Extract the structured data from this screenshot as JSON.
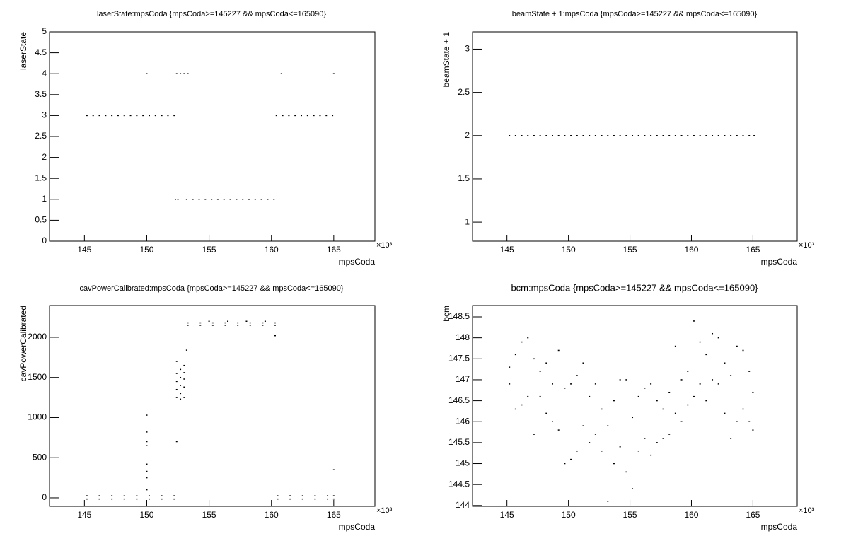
{
  "chart_data": [
    {
      "type": "scatter",
      "title": "laserState:mpsCoda {mpsCoda>=145227 && mpsCoda<=165090}",
      "xlabel": "mpsCoda",
      "ylabel": "laserState",
      "x_exponent": "×10³",
      "color": "#000000",
      "xlim": [
        142.2,
        168.3
      ],
      "xticks": [
        145,
        150,
        155,
        160,
        165
      ],
      "ylim": [
        0,
        5
      ],
      "yticks": [
        0,
        0.5,
        1,
        1.5,
        2,
        2.5,
        3,
        3.5,
        4,
        4.5,
        5
      ],
      "x": [
        145.2,
        145.7,
        146.2,
        146.7,
        147.2,
        147.7,
        148.2,
        148.7,
        149.2,
        149.7,
        150.2,
        150.7,
        151.2,
        151.7,
        152.2,
        160.4,
        160.9,
        161.4,
        161.9,
        162.4,
        162.9,
        163.4,
        163.9,
        164.4,
        164.9,
        150.0,
        152.4,
        152.7,
        153.0,
        153.3,
        160.8,
        165.0,
        152.3,
        152.5,
        153.2,
        153.7,
        154.2,
        154.7,
        155.2,
        155.7,
        156.2,
        156.7,
        157.2,
        157.7,
        158.2,
        158.7,
        159.2,
        159.7,
        160.2
      ],
      "values": [
        3,
        3,
        3,
        3,
        3,
        3,
        3,
        3,
        3,
        3,
        3,
        3,
        3,
        3,
        3,
        3,
        3,
        3,
        3,
        3,
        3,
        3,
        3,
        3,
        3,
        4,
        4,
        4,
        4,
        4,
        4,
        4,
        1,
        1,
        1,
        1,
        1,
        1,
        1,
        1,
        1,
        1,
        1,
        1,
        1,
        1,
        1,
        1,
        1
      ]
    },
    {
      "type": "scatter",
      "title": "beamState + 1:mpsCoda {mpsCoda>=145227 && mpsCoda<=165090}",
      "xlabel": "mpsCoda",
      "ylabel": "beamState + 1",
      "x_exponent": "×10³",
      "color": "#000000",
      "xlim": [
        142.2,
        168.6
      ],
      "xticks": [
        145,
        150,
        155,
        160,
        165
      ],
      "ylim": [
        0.78,
        3.2
      ],
      "yticks": [
        1,
        1.5,
        2,
        2.5,
        3
      ],
      "x": [
        145.2,
        145.7,
        146.2,
        146.7,
        147.2,
        147.7,
        148.2,
        148.7,
        149.2,
        149.7,
        150.2,
        150.7,
        151.2,
        151.7,
        152.2,
        152.7,
        153.2,
        153.7,
        154.2,
        154.7,
        155.2,
        155.7,
        156.2,
        156.7,
        157.2,
        157.7,
        158.2,
        158.7,
        159.2,
        159.7,
        160.2,
        160.7,
        161.2,
        161.7,
        162.2,
        162.7,
        163.2,
        163.7,
        164.2,
        164.7,
        165.1
      ],
      "values": [
        2,
        2,
        2,
        2,
        2,
        2,
        2,
        2,
        2,
        2,
        2,
        2,
        2,
        2,
        2,
        2,
        2,
        2,
        2,
        2,
        2,
        2,
        2,
        2,
        2,
        2,
        2,
        2,
        2,
        2,
        2,
        2,
        2,
        2,
        2,
        2,
        2,
        2,
        2,
        2,
        2
      ]
    },
    {
      "type": "scatter",
      "title": "cavPowerCalibrated:mpsCoda {mpsCoda>=145227 && mpsCoda<=165090}",
      "xlabel": "mpsCoda",
      "ylabel": "cavPowerCalibrated",
      "x_exponent": "×10³",
      "color": "#000000",
      "xlim": [
        142.2,
        168.3
      ],
      "xticks": [
        145,
        150,
        155,
        160,
        165
      ],
      "ylim": [
        -106,
        2396
      ],
      "yticks": [
        0,
        500,
        1000,
        1500,
        2000
      ],
      "x": [
        145.2,
        146.2,
        147.2,
        148.2,
        149.2,
        150.2,
        151.2,
        152.2,
        145.2,
        146.2,
        147.2,
        148.2,
        149.2,
        150.2,
        151.2,
        152.2,
        160.5,
        161.5,
        162.5,
        163.5,
        164.5,
        165.0,
        160.5,
        161.5,
        162.5,
        163.5,
        164.5,
        165.0,
        150.0,
        150.0,
        150.0,
        150.0,
        150.0,
        150.0,
        150.0,
        150.0,
        152.4,
        152.4,
        152.4,
        152.4,
        152.4,
        152.4,
        152.7,
        152.7,
        152.7,
        152.7,
        152.7,
        153.0,
        153.0,
        153.0,
        153.0,
        153.0,
        153.2,
        153.3,
        154.3,
        155.3,
        156.3,
        157.3,
        158.3,
        159.3,
        160.3,
        153.3,
        154.3,
        155.3,
        156.3,
        157.3,
        158.3,
        159.3,
        160.3,
        155.0,
        156.5,
        158.0,
        159.5,
        160.3,
        165.0
      ],
      "values": [
        25,
        25,
        25,
        25,
        25,
        25,
        25,
        25,
        -15,
        -15,
        -15,
        -15,
        -15,
        -15,
        -15,
        -15,
        25,
        25,
        25,
        25,
        25,
        25,
        -15,
        -15,
        -15,
        -15,
        -15,
        -15,
        100,
        250,
        330,
        420,
        650,
        700,
        820,
        1030,
        700,
        1250,
        1350,
        1450,
        1550,
        1700,
        1230,
        1300,
        1400,
        1500,
        1600,
        1250,
        1380,
        1480,
        1560,
        1650,
        1840,
        2150,
        2150,
        2150,
        2150,
        2150,
        2150,
        2150,
        2150,
        2180,
        2180,
        2180,
        2180,
        2180,
        2180,
        2180,
        2180,
        2200,
        2200,
        2200,
        2200,
        2020,
        350
      ]
    },
    {
      "type": "scatter",
      "title": "bcm:mpsCoda {mpsCoda>=145227 && mpsCoda<=165090}",
      "xlabel": "mpsCoda",
      "ylabel": "bcm",
      "x_exponent": "×10³",
      "color": "#000000",
      "xlim": [
        142.2,
        168.6
      ],
      "xticks": [
        145,
        150,
        155,
        160,
        165
      ],
      "ylim": [
        143.98,
        148.77
      ],
      "yticks": [
        144,
        144.5,
        145,
        145.5,
        146,
        146.5,
        147,
        147.5,
        148,
        148.5
      ],
      "x": [
        145.2,
        145.2,
        145.7,
        145.7,
        146.2,
        146.2,
        146.7,
        146.7,
        147.2,
        147.2,
        147.7,
        147.7,
        148.2,
        148.2,
        148.7,
        148.7,
        149.2,
        149.2,
        149.7,
        149.7,
        150.2,
        150.2,
        150.7,
        150.7,
        151.2,
        151.2,
        151.7,
        151.7,
        152.2,
        152.2,
        152.7,
        152.7,
        153.2,
        153.2,
        153.7,
        153.7,
        154.2,
        154.2,
        154.7,
        154.7,
        155.2,
        155.2,
        155.7,
        155.7,
        156.2,
        156.2,
        156.7,
        156.7,
        157.2,
        157.2,
        157.7,
        157.7,
        158.2,
        158.2,
        158.7,
        158.7,
        159.2,
        159.2,
        159.7,
        159.7,
        160.2,
        160.2,
        160.7,
        160.7,
        161.2,
        161.2,
        161.7,
        161.7,
        162.2,
        162.2,
        162.7,
        162.7,
        163.2,
        163.2,
        163.7,
        163.7,
        164.2,
        164.2,
        164.7,
        164.7,
        165.0,
        165.0
      ],
      "values": [
        147.3,
        146.9,
        147.6,
        146.3,
        147.9,
        146.4,
        148.0,
        146.6,
        147.5,
        145.7,
        147.2,
        146.6,
        147.4,
        146.2,
        146.9,
        146.0,
        147.7,
        145.8,
        146.8,
        145.0,
        146.9,
        145.1,
        147.1,
        145.3,
        147.4,
        145.9,
        146.6,
        145.5,
        146.9,
        145.7,
        146.3,
        145.3,
        145.9,
        144.1,
        146.5,
        145.0,
        147.0,
        145.4,
        147.0,
        144.8,
        146.1,
        144.4,
        146.6,
        145.3,
        146.8,
        145.6,
        146.9,
        145.2,
        146.5,
        145.5,
        146.3,
        145.6,
        146.7,
        145.7,
        147.8,
        146.2,
        147.0,
        146.0,
        147.2,
        146.4,
        148.4,
        146.6,
        147.9,
        146.9,
        147.6,
        146.5,
        148.1,
        147.0,
        148.0,
        146.9,
        147.4,
        146.2,
        147.1,
        145.6,
        147.8,
        146.0,
        147.7,
        146.3,
        147.2,
        146.0,
        146.7,
        145.8
      ]
    }
  ]
}
